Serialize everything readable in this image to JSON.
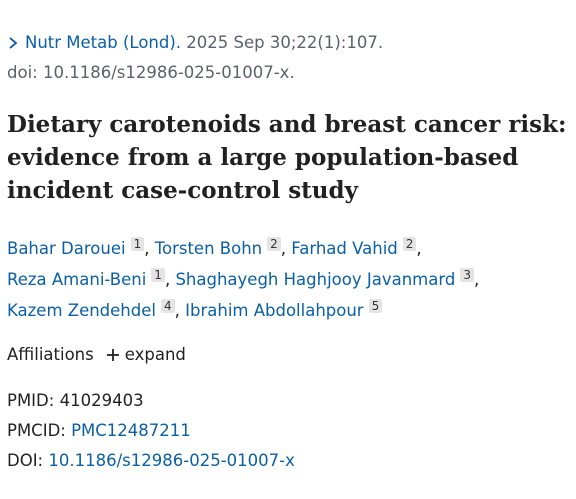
{
  "citation": {
    "journal": "Nutr Metab (Lond).",
    "date": "2025 Sep 30;22(1):107.",
    "doi": "doi: 10.1186/s12986-025-01007-x."
  },
  "title": "Dietary carotenoids and breast cancer risk: evidence from a large population-based incident case-control study",
  "authors": [
    {
      "name": "Bahar Darouei",
      "affiliation": 1
    },
    {
      "name": "Torsten Bohn",
      "affiliation": 2
    },
    {
      "name": "Farhad Vahid",
      "affiliation": 2
    },
    {
      "name": "Reza Amani-Beni",
      "affiliation": 1
    },
    {
      "name": "Shaghayegh Haghjooy Javanmard",
      "affiliation": 3
    },
    {
      "name": "Kazem Zendehdel",
      "affiliation": 4
    },
    {
      "name": "Ibrahim Abdollahpour",
      "affiliation": 5
    }
  ],
  "affiliations": {
    "label": "Affiliations",
    "toggle": "expand"
  },
  "identifiers": [
    {
      "label": "PMID:",
      "value": "41029403"
    },
    {
      "label": "PMCID:",
      "value": "PMC12487211"
    },
    {
      "label": "DOI:",
      "value": "10.1186/s12986-025-01007-x"
    }
  ]
}
